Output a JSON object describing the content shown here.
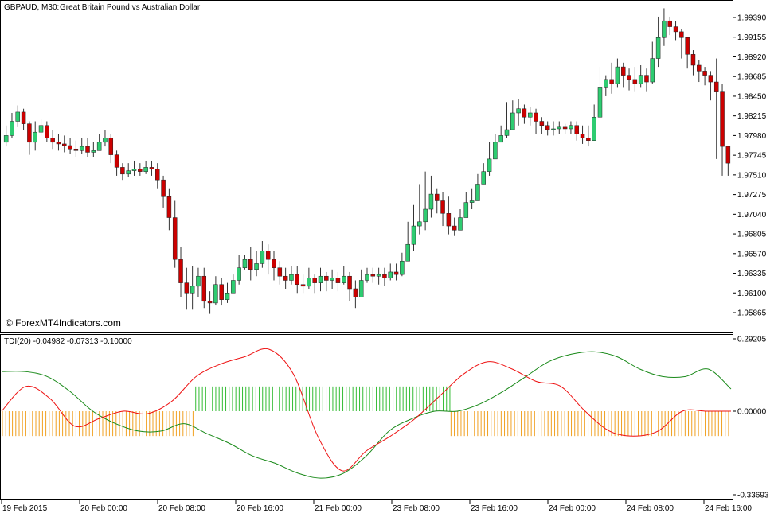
{
  "header": {
    "symbol_label": "GBPAUD, M30:",
    "description": "Great Britain Pound vs Australian Dollar"
  },
  "watermark": "© ForexMT4Indicators.com",
  "indicator": {
    "label": "TDI(20) -0.04982 -0.07313 -0.10000"
  },
  "colors": {
    "bull": "#2ecc71",
    "bear": "#cc0000",
    "wick": "#333333",
    "green_line": "#1a8a1a",
    "red_line": "#ee1111",
    "green_hist": "#33bb33",
    "orange_hist": "#f0a020"
  },
  "chart_data": [
    {
      "type": "candlestick",
      "symbol": "GBPAUD",
      "timeframe": "M30",
      "ylim": [
        1.95865,
        1.9939
      ],
      "y_ticks": [
        "1.99390",
        "1.99155",
        "1.98920",
        "1.98685",
        "1.98450",
        "1.98215",
        "1.97980",
        "1.97745",
        "1.97510",
        "1.97275",
        "1.97040",
        "1.96805",
        "1.96570",
        "1.96335",
        "1.96100",
        "1.95865"
      ],
      "closes": [
        1.9798,
        1.9815,
        1.9826,
        1.9812,
        1.979,
        1.9802,
        1.981,
        1.9795,
        1.979,
        1.9788,
        1.9786,
        1.9782,
        1.978,
        1.9785,
        1.9778,
        1.978,
        1.979,
        1.9795,
        1.9775,
        1.976,
        1.9752,
        1.9756,
        1.9758,
        1.9755,
        1.976,
        1.9758,
        1.9745,
        1.9725,
        1.97,
        1.965,
        1.9622,
        1.961,
        1.9618,
        1.963,
        1.96,
        1.9598,
        1.962,
        1.9602,
        1.961,
        1.9625,
        1.964,
        1.965,
        1.9638,
        1.9645,
        1.966,
        1.965,
        1.964,
        1.963,
        1.9625,
        1.9632,
        1.962,
        1.9618,
        1.9628,
        1.9622,
        1.963,
        1.9625,
        1.9628,
        1.9622,
        1.963,
        1.9615,
        1.9605,
        1.9625,
        1.9632,
        1.963,
        1.9632,
        1.9628,
        1.9635,
        1.9632,
        1.9648,
        1.9668,
        1.969,
        1.9695,
        1.971,
        1.9728,
        1.972,
        1.9705,
        1.969,
        1.9685,
        1.97,
        1.9718,
        1.972,
        1.974,
        1.9755,
        1.977,
        1.979,
        1.9798,
        1.9805,
        1.9825,
        1.983,
        1.982,
        1.9825,
        1.9815,
        1.981,
        1.9805,
        1.9806,
        1.9808,
        1.9806,
        1.981,
        1.98,
        1.9795,
        1.9792,
        1.982,
        1.9855,
        1.9865,
        1.986,
        1.988,
        1.987,
        1.9865,
        1.986,
        1.987,
        1.9862,
        1.989,
        1.9915,
        1.9935,
        1.9928,
        1.9922,
        1.9915,
        1.9895,
        1.9882,
        1.9875,
        1.987,
        1.9862,
        1.985,
        1.9785,
        1.9765
      ],
      "highs": [
        1.981,
        1.9825,
        1.9834,
        1.983,
        1.9815,
        1.9815,
        1.9818,
        1.9815,
        1.9805,
        1.98,
        1.9798,
        1.9795,
        1.9792,
        1.9795,
        1.9795,
        1.979,
        1.98,
        1.9805,
        1.98,
        1.978,
        1.9765,
        1.9765,
        1.9768,
        1.9765,
        1.9768,
        1.9768,
        1.9765,
        1.975,
        1.9735,
        1.972,
        1.9665,
        1.964,
        1.9642,
        1.964,
        1.964,
        1.9612,
        1.963,
        1.9628,
        1.9622,
        1.9632,
        1.9655,
        1.9655,
        1.9665,
        1.966,
        1.9672,
        1.9668,
        1.966,
        1.9648,
        1.964,
        1.9642,
        1.9642,
        1.9632,
        1.964,
        1.9632,
        1.964,
        1.9635,
        1.9638,
        1.9635,
        1.9642,
        1.9635,
        1.9625,
        1.9638,
        1.964,
        1.964,
        1.964,
        1.964,
        1.9645,
        1.9645,
        1.9658,
        1.9695,
        1.9715,
        1.974,
        1.9755,
        1.975,
        1.9735,
        1.973,
        1.9725,
        1.97,
        1.971,
        1.973,
        1.9735,
        1.9752,
        1.9765,
        1.979,
        1.98,
        1.981,
        1.9838,
        1.984,
        1.9842,
        1.9835,
        1.9832,
        1.983,
        1.982,
        1.9815,
        1.9815,
        1.9815,
        1.9812,
        1.9815,
        1.9815,
        1.981,
        1.981,
        1.9835,
        1.988,
        1.987,
        1.9885,
        1.989,
        1.9885,
        1.9878,
        1.988,
        1.9882,
        1.9878,
        1.991,
        1.994,
        1.995,
        1.994,
        1.9935,
        1.9925,
        1.9915,
        1.99,
        1.9888,
        1.988,
        1.9875,
        1.989,
        1.986,
        1.9785
      ],
      "lows": [
        1.9785,
        1.9795,
        1.9808,
        1.9805,
        1.9775,
        1.978,
        1.9798,
        1.979,
        1.9782,
        1.978,
        1.9778,
        1.9776,
        1.9772,
        1.9776,
        1.9772,
        1.9772,
        1.978,
        1.9785,
        1.9765,
        1.975,
        1.9745,
        1.9748,
        1.975,
        1.975,
        1.9752,
        1.975,
        1.9735,
        1.9712,
        1.9685,
        1.964,
        1.9605,
        1.959,
        1.959,
        1.9605,
        1.9592,
        1.9585,
        1.9595,
        1.9595,
        1.9598,
        1.9612,
        1.962,
        1.9638,
        1.9625,
        1.963,
        1.964,
        1.9632,
        1.9625,
        1.962,
        1.9615,
        1.962,
        1.961,
        1.961,
        1.9615,
        1.961,
        1.9612,
        1.9612,
        1.9615,
        1.9612,
        1.962,
        1.96,
        1.9592,
        1.9608,
        1.9622,
        1.9622,
        1.962,
        1.9618,
        1.9625,
        1.9625,
        1.963,
        1.9648,
        1.966,
        1.968,
        1.9685,
        1.97,
        1.9705,
        1.969,
        1.968,
        1.9678,
        1.969,
        1.9702,
        1.971,
        1.9725,
        1.974,
        1.975,
        1.977,
        1.979,
        1.9795,
        1.9805,
        1.981,
        1.9812,
        1.981,
        1.98,
        1.98,
        1.9798,
        1.9798,
        1.98,
        1.98,
        1.98,
        1.9792,
        1.9788,
        1.9785,
        1.9795,
        1.982,
        1.9845,
        1.9848,
        1.9855,
        1.9855,
        1.9852,
        1.985,
        1.9855,
        1.985,
        1.986,
        1.988,
        1.9905,
        1.9918,
        1.9912,
        1.989,
        1.9878,
        1.987,
        1.9862,
        1.9858,
        1.984,
        1.977,
        1.975,
        1.975
      ]
    },
    {
      "type": "line",
      "indicator": "TDI(20)",
      "ylim": [
        -0.33693,
        0.29205
      ],
      "y_ticks": [
        "0.29205",
        "0.00000",
        "-0.33693"
      ],
      "x_ticks": [
        "19 Feb 2015",
        "20 Feb 00:00",
        "20 Feb 08:00",
        "20 Feb 16:00",
        "21 Feb 00:00",
        "23 Feb 08:00",
        "23 Feb 16:00",
        "24 Feb 00:00",
        "24 Feb 08:00",
        "24 Feb 16:00"
      ],
      "histogram_levels": [
        0.1,
        -0.1
      ],
      "green_series": [
        0.16,
        0.16,
        0.14,
        0.08,
        0.0,
        -0.05,
        -0.08,
        -0.08,
        -0.05,
        -0.09,
        -0.13,
        -0.18,
        -0.21,
        -0.25,
        -0.27,
        -0.25,
        -0.18,
        -0.08,
        -0.03,
        0.0,
        0.0,
        0.03,
        0.08,
        0.14,
        0.2,
        0.23,
        0.24,
        0.22,
        0.17,
        0.14,
        0.14,
        0.17,
        0.09
      ],
      "red_series": [
        0.0,
        0.1,
        0.05,
        -0.06,
        -0.03,
        0.0,
        -0.01,
        0.04,
        0.14,
        0.19,
        0.22,
        0.25,
        0.15,
        -0.1,
        -0.24,
        -0.16,
        -0.1,
        -0.03,
        0.06,
        0.15,
        0.2,
        0.17,
        0.12,
        0.1,
        0.0,
        -0.08,
        -0.1,
        -0.08,
        0.0,
        0.0,
        0.0
      ],
      "histogram": {
        "segments": [
          {
            "color": "orange",
            "from": 0.0,
            "to": 0.265,
            "direction": "down"
          },
          {
            "color": "green",
            "from": 0.265,
            "to": 0.615,
            "direction": "up"
          },
          {
            "color": "orange",
            "from": 0.615,
            "to": 1.0,
            "direction": "down"
          }
        ]
      }
    }
  ]
}
